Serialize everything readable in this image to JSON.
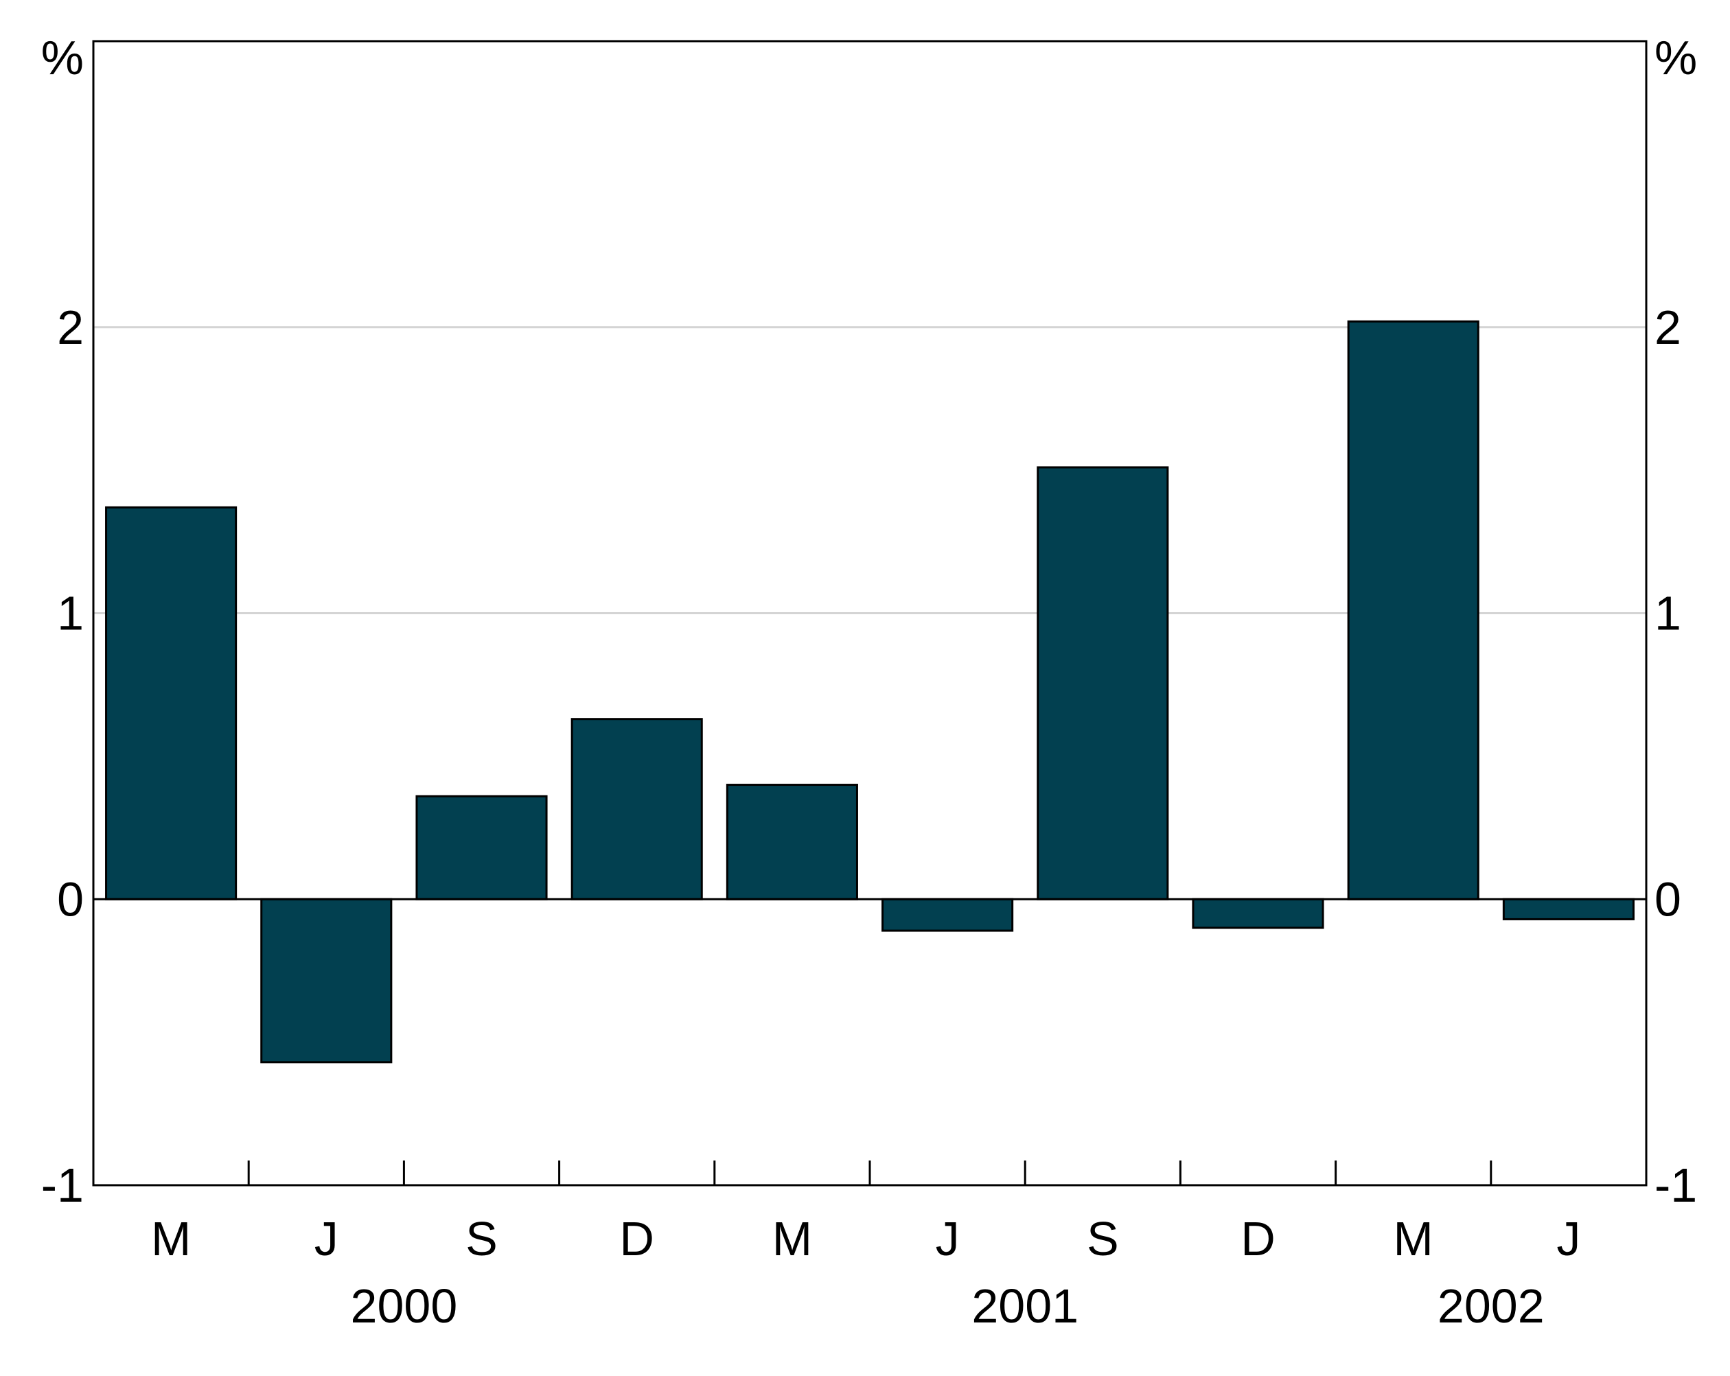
{
  "chart_data": {
    "type": "bar",
    "categories": [
      "M",
      "J",
      "S",
      "D",
      "M",
      "J",
      "S",
      "D",
      "M",
      "J"
    ],
    "years": [
      {
        "label": "2000",
        "from": 0,
        "to": 3
      },
      {
        "label": "2001",
        "from": 4,
        "to": 7
      },
      {
        "label": "2002",
        "from": 8,
        "to": 9
      }
    ],
    "series": [
      {
        "values": [
          1.37,
          -0.57,
          0.36,
          0.63,
          0.4,
          -0.11,
          1.51,
          -0.1,
          2.02,
          -0.07
        ]
      }
    ],
    "y_unit_left": "%",
    "y_unit_right": "%",
    "ylim": [
      -1,
      3
    ],
    "yticks": [
      -1,
      0,
      1,
      2
    ],
    "ytick_labels": [
      "-1",
      "0",
      "1",
      "2"
    ],
    "gridlines": [
      1,
      2
    ],
    "bar_color": "#024050",
    "gridline_color": "#d4d4d4",
    "axes_color": "#000000"
  }
}
